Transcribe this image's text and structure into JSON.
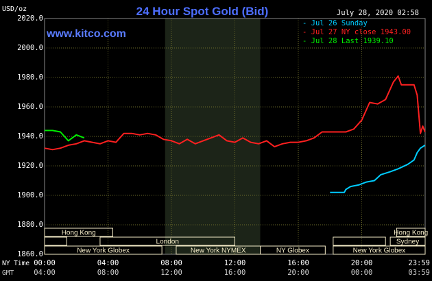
{
  "chart_data": {
    "type": "line",
    "title": "24 Hour Spot Gold (Bid)",
    "watermark": "www.kitco.com",
    "y_unit_label": "USD/oz",
    "timestamp": "July 28, 2020 02:58",
    "ylim": [
      1860,
      2020
    ],
    "yticks": [
      "2020.0",
      "2000.0",
      "1980.0",
      "1960.0",
      "1940.0",
      "1920.0",
      "1900.0",
      "1880.0",
      "1860.0"
    ],
    "xlim": [
      0,
      24
    ],
    "x_row_labels": {
      "ny": "NY Time",
      "gmt": "GMT"
    },
    "x_ticks_ny": [
      "00:00",
      "04:00",
      "08:00",
      "12:00",
      "16:00",
      "20:00",
      "23:59"
    ],
    "x_ticks_gmt": [
      "04:00",
      "08:00",
      "12:00",
      "16:00",
      "20:00",
      "00:00",
      "03:59"
    ],
    "grid": true,
    "legend_position": "top-right",
    "colors": {
      "background": "#000000",
      "plot_background": "#000000",
      "highlight_band": "#1c2418",
      "grid": "#6b6b2a",
      "axis_text": "#ffffff",
      "title": "#4d6eff",
      "watermark": "#5a7cff",
      "session_bar_fill": "#f5ecc8",
      "session_bar_text": "#5a4a1a"
    },
    "highlight_band": {
      "start": 7.6,
      "end": 13.6
    },
    "series": [
      {
        "name": "Jul 26 Sunday",
        "color": "#00ccff",
        "points": [
          [
            18,
            1902
          ],
          [
            18.4,
            1902
          ],
          [
            18.9,
            1902
          ],
          [
            19.0,
            1904
          ],
          [
            19.3,
            1906
          ],
          [
            19.8,
            1907
          ],
          [
            20.3,
            1909
          ],
          [
            20.8,
            1910
          ],
          [
            21.2,
            1914
          ],
          [
            21.8,
            1916
          ],
          [
            22.3,
            1918
          ],
          [
            22.9,
            1921
          ],
          [
            23.3,
            1924
          ],
          [
            23.5,
            1929
          ],
          [
            23.7,
            1932
          ],
          [
            23.99,
            1934
          ]
        ]
      },
      {
        "name": "Jul 27 NY close 1943.00",
        "color": "#ff2020",
        "points": [
          [
            0,
            1932
          ],
          [
            0.5,
            1931
          ],
          [
            1,
            1932
          ],
          [
            1.5,
            1934
          ],
          [
            2,
            1935
          ],
          [
            2.5,
            1937
          ],
          [
            3,
            1936
          ],
          [
            3.5,
            1935
          ],
          [
            4,
            1937
          ],
          [
            4.5,
            1936
          ],
          [
            5,
            1942
          ],
          [
            5.5,
            1942
          ],
          [
            6,
            1941
          ],
          [
            6.5,
            1942
          ],
          [
            7,
            1941
          ],
          [
            7.5,
            1938
          ],
          [
            8,
            1937
          ],
          [
            8.5,
            1935
          ],
          [
            9,
            1938
          ],
          [
            9.5,
            1935
          ],
          [
            10,
            1937
          ],
          [
            10.5,
            1939
          ],
          [
            11,
            1941
          ],
          [
            11.5,
            1937
          ],
          [
            12,
            1936
          ],
          [
            12.5,
            1939
          ],
          [
            13,
            1936
          ],
          [
            13.5,
            1935
          ],
          [
            14,
            1937
          ],
          [
            14.5,
            1933
          ],
          [
            15,
            1935
          ],
          [
            15.5,
            1936
          ],
          [
            16,
            1936
          ],
          [
            16.5,
            1937
          ],
          [
            17,
            1939
          ],
          [
            17.5,
            1943
          ],
          [
            18,
            1943
          ],
          [
            18.5,
            1943
          ],
          [
            19,
            1943
          ],
          [
            19.5,
            1945
          ],
          [
            20,
            1951
          ],
          [
            20.5,
            1963
          ],
          [
            21,
            1962
          ],
          [
            21.5,
            1965
          ],
          [
            22,
            1977
          ],
          [
            22.3,
            1981
          ],
          [
            22.5,
            1975
          ],
          [
            23,
            1975
          ],
          [
            23.3,
            1975
          ],
          [
            23.5,
            1968
          ],
          [
            23.7,
            1942
          ],
          [
            23.85,
            1947
          ],
          [
            23.99,
            1943
          ]
        ]
      },
      {
        "name": "Jul 28 Last 1939.10",
        "color": "#00ee00",
        "points": [
          [
            0,
            1944
          ],
          [
            0.5,
            1944
          ],
          [
            1,
            1943
          ],
          [
            1.5,
            1937
          ],
          [
            2,
            1941
          ],
          [
            2.5,
            1939
          ]
        ]
      }
    ],
    "session_bars": [
      {
        "label": "Hong Kong",
        "start": 0,
        "end": 4.3,
        "row": 0
      },
      {
        "label": "Hong Kong",
        "start": 22.2,
        "end": 24,
        "row": 0
      },
      {
        "label": "",
        "start": 0,
        "end": 1.4,
        "row": 1
      },
      {
        "label": "London",
        "start": 3.5,
        "end": 12.0,
        "row": 1
      },
      {
        "label": "Sydney",
        "start": 21.8,
        "end": 24,
        "row": 1
      },
      {
        "label": "",
        "start": 18.2,
        "end": 21.5,
        "row": 1
      },
      {
        "label": "New York Globex",
        "start": 0,
        "end": 7.4,
        "row": 2
      },
      {
        "label": "New York NYMEX",
        "start": 8.3,
        "end": 13.6,
        "row": 2
      },
      {
        "label": "NY Globex",
        "start": 13.6,
        "end": 17.7,
        "row": 2
      },
      {
        "label": "New York Globex",
        "start": 18.2,
        "end": 24,
        "row": 2
      }
    ]
  }
}
